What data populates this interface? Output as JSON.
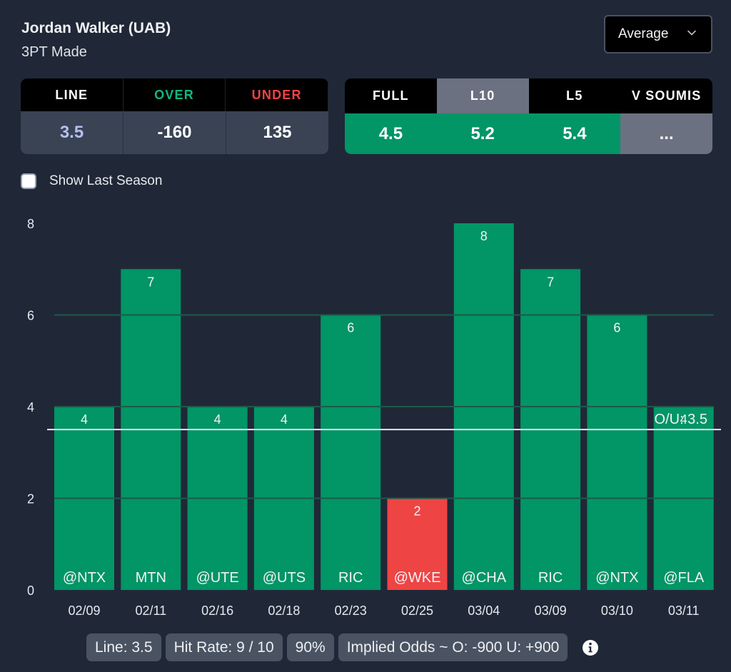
{
  "header": {
    "player": "Jordan Walker (UAB)",
    "stat": "3PT Made"
  },
  "dropdown": {
    "selected": "Average",
    "icon": "chevron-down-icon"
  },
  "odds": {
    "headers": [
      {
        "label": "LINE",
        "color": "#ffffff"
      },
      {
        "label": "OVER",
        "color": "#10b981"
      },
      {
        "label": "UNDER",
        "color": "#ef4444"
      }
    ],
    "values": [
      {
        "value": "3.5",
        "color": "#b6bff0"
      },
      {
        "value": "-160",
        "color": "#ffffff"
      },
      {
        "value": "135",
        "color": "#ffffff"
      }
    ]
  },
  "averages": {
    "tabs": [
      {
        "label": "FULL",
        "value": "4.5",
        "active": false,
        "bg": "#029566"
      },
      {
        "label": "L10",
        "value": "5.2",
        "active": true,
        "bg": "#029566"
      },
      {
        "label": "L5",
        "value": "5.4",
        "active": false,
        "bg": "#029566"
      },
      {
        "label": "V SOUMIS",
        "value": "...",
        "active": false,
        "bg": "#6b7180"
      }
    ]
  },
  "show_last_season": {
    "label": "Show Last Season",
    "checked": false
  },
  "summary": {
    "line": "Line: 3.5",
    "hit_rate": "Hit Rate: 9 / 10",
    "percent": "90%",
    "implied_odds": "Implied Odds ~ O: -900 U: +900",
    "info_icon": "info-icon"
  },
  "colors": {
    "over": "#029566",
    "under": "#ef4444",
    "background": "#202837",
    "line": "#e5e7eb"
  },
  "chart_data": {
    "type": "bar",
    "title": "",
    "xlabel": "",
    "ylabel": "",
    "ylim": [
      0,
      8
    ],
    "yticks": [
      0,
      2,
      4,
      6,
      8
    ],
    "grid": true,
    "categories": [
      "02/09",
      "02/11",
      "02/16",
      "02/18",
      "02/23",
      "02/25",
      "03/04",
      "03/09",
      "03/10",
      "03/11"
    ],
    "opponents": [
      "@NTX",
      "MTN",
      "@UTE",
      "@UTS",
      "RIC",
      "@WKE",
      "@CHA",
      "RIC",
      "@NTX",
      "@FLA"
    ],
    "values": [
      4,
      7,
      4,
      4,
      6,
      2,
      8,
      7,
      6,
      4
    ],
    "reference_line": {
      "value": 3.5,
      "label": "O/U: 3.5"
    }
  }
}
